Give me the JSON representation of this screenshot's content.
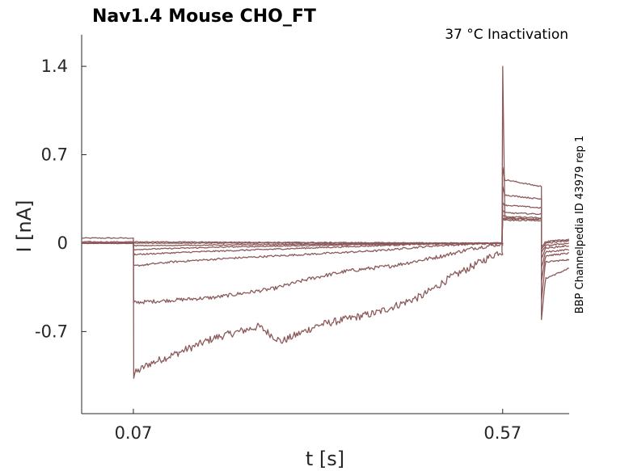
{
  "chart_data": {
    "type": "line",
    "title": "Nav1.4  Mouse  CHO_FT",
    "subtitle": "37 °C  Inactivation",
    "side_note": "BBP Channelpedia ID 43979 rep 1",
    "xlabel": "t [s]",
    "ylabel": "I [nA]",
    "xlim": [
      0.0,
      0.66
    ],
    "ylim": [
      -1.35,
      1.65
    ],
    "xticks": [
      {
        "value": 0.07,
        "label": "0.07"
      },
      {
        "value": 0.57,
        "label": "0.57"
      }
    ],
    "yticks": [
      {
        "value": 1.4,
        "label": "1.4"
      },
      {
        "value": 0.7,
        "label": "0.7"
      },
      {
        "value": 0,
        "label": "0"
      },
      {
        "value": -0.7,
        "label": "-0.7"
      }
    ],
    "grid": false,
    "line_color": "#8c5a5a",
    "series": [
      {
        "pre": 0.04,
        "step_peak": -1.07,
        "step_points": [
          [
            0.072,
            -1.03
          ],
          [
            0.09,
            -0.96
          ],
          [
            0.13,
            -0.87
          ],
          [
            0.18,
            -0.75
          ],
          [
            0.24,
            -0.66
          ],
          [
            0.27,
            -0.78
          ],
          [
            0.32,
            -0.65
          ],
          [
            0.4,
            -0.55
          ],
          [
            0.46,
            -0.42
          ],
          [
            0.5,
            -0.27
          ],
          [
            0.53,
            -0.18
          ],
          [
            0.565,
            -0.07
          ]
        ],
        "test_peak": 1.4,
        "test_points": [
          [
            0.575,
            0.2
          ],
          [
            0.62,
            0.19
          ]
        ],
        "tail_points": [
          [
            0.6225,
            -0.6
          ],
          [
            0.628,
            -0.28
          ],
          [
            0.66,
            -0.2
          ]
        ]
      },
      {
        "pre": 0.01,
        "step_peak": -0.47,
        "step_points": [
          [
            0.072,
            -0.47
          ],
          [
            0.1,
            -0.46
          ],
          [
            0.18,
            -0.43
          ],
          [
            0.26,
            -0.36
          ],
          [
            0.31,
            -0.28
          ],
          [
            0.36,
            -0.22
          ],
          [
            0.42,
            -0.18
          ],
          [
            0.49,
            -0.1
          ],
          [
            0.53,
            -0.04
          ],
          [
            0.565,
            -0.01
          ]
        ],
        "test_peak": 0.6,
        "test_points": [
          [
            0.575,
            0.5
          ],
          [
            0.62,
            0.45
          ]
        ],
        "tail_points": [
          [
            0.6225,
            -0.45
          ],
          [
            0.628,
            -0.15
          ],
          [
            0.66,
            -0.13
          ]
        ]
      },
      {
        "pre": 0.0,
        "step_peak": -0.18,
        "step_points": [
          [
            0.072,
            -0.18
          ],
          [
            0.12,
            -0.15
          ],
          [
            0.2,
            -0.12
          ],
          [
            0.3,
            -0.09
          ],
          [
            0.4,
            -0.06
          ],
          [
            0.48,
            -0.02
          ],
          [
            0.565,
            0.0
          ]
        ],
        "test_peak": 0.45,
        "test_points": [
          [
            0.575,
            0.38
          ],
          [
            0.62,
            0.35
          ]
        ],
        "tail_points": [
          [
            0.6225,
            -0.3
          ],
          [
            0.628,
            -0.1
          ],
          [
            0.66,
            -0.08
          ]
        ]
      },
      {
        "pre": 0.0,
        "step_peak": -0.1,
        "step_points": [
          [
            0.072,
            -0.09
          ],
          [
            0.15,
            -0.07
          ],
          [
            0.3,
            -0.04
          ],
          [
            0.45,
            -0.01
          ],
          [
            0.565,
            0.0
          ]
        ],
        "test_peak": 0.32,
        "test_points": [
          [
            0.575,
            0.3
          ],
          [
            0.62,
            0.28
          ]
        ],
        "tail_points": [
          [
            0.6225,
            -0.2
          ],
          [
            0.628,
            -0.07
          ],
          [
            0.66,
            -0.05
          ]
        ]
      },
      {
        "pre": 0.0,
        "step_peak": -0.05,
        "step_points": [
          [
            0.072,
            -0.05
          ],
          [
            0.2,
            -0.03
          ],
          [
            0.4,
            -0.01
          ],
          [
            0.565,
            0.0
          ]
        ],
        "test_peak": 0.26,
        "test_points": [
          [
            0.575,
            0.24
          ],
          [
            0.62,
            0.23
          ]
        ],
        "tail_points": [
          [
            0.6225,
            -0.12
          ],
          [
            0.628,
            -0.04
          ],
          [
            0.66,
            -0.02
          ]
        ]
      },
      {
        "pre": 0.0,
        "step_peak": -0.02,
        "step_points": [
          [
            0.072,
            -0.02
          ],
          [
            0.3,
            -0.01
          ],
          [
            0.565,
            0.0
          ]
        ],
        "test_peak": 0.22,
        "test_points": [
          [
            0.575,
            0.21
          ],
          [
            0.62,
            0.2
          ]
        ],
        "tail_points": [
          [
            0.6225,
            -0.08
          ],
          [
            0.628,
            -0.02
          ],
          [
            0.66,
            0.0
          ]
        ]
      },
      {
        "pre": 0.0,
        "step_peak": 0.0,
        "step_points": [
          [
            0.072,
            0.0
          ],
          [
            0.565,
            0.0
          ]
        ],
        "test_peak": 0.2,
        "test_points": [
          [
            0.575,
            0.19
          ],
          [
            0.62,
            0.19
          ]
        ],
        "tail_points": [
          [
            0.6225,
            -0.05
          ],
          [
            0.628,
            0.0
          ],
          [
            0.66,
            0.02
          ]
        ]
      },
      {
        "pre": 0.0,
        "step_peak": 0.01,
        "step_points": [
          [
            0.072,
            0.01
          ],
          [
            0.565,
            0.0
          ]
        ],
        "test_peak": 0.19,
        "test_points": [
          [
            0.575,
            0.18
          ],
          [
            0.62,
            0.18
          ]
        ],
        "tail_points": [
          [
            0.6225,
            -0.03
          ],
          [
            0.628,
            0.01
          ],
          [
            0.66,
            0.03
          ]
        ]
      }
    ],
    "protocol_times": {
      "step_on": 0.07,
      "test_on": 0.57,
      "test_off": 0.6225
    }
  }
}
